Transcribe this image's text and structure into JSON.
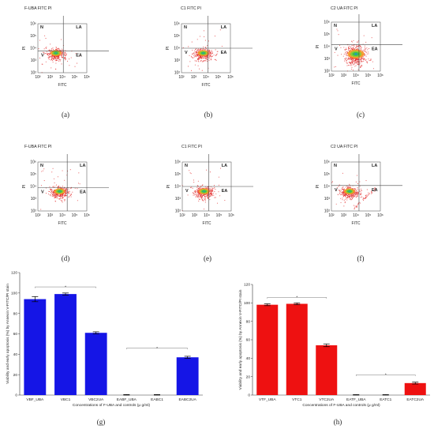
{
  "flow_panels": [
    {
      "id": "a",
      "title": "F-UBA FITC PI",
      "caption": "(a)",
      "quadrants": [
        "N",
        "LA",
        "V",
        "EA"
      ],
      "x_ticks": [
        "10²",
        "10³",
        "10⁴",
        "10⁵",
        "10⁶"
      ],
      "y_ticks": [
        "10²",
        "10³",
        "10⁴",
        "10⁵",
        "10⁶"
      ],
      "xlabel": "FITC",
      "ylabel": "PI"
    },
    {
      "id": "b",
      "title": "C1 FITC PI",
      "caption": "(b)",
      "quadrants": [
        "N",
        "LA",
        "V",
        "EA"
      ],
      "x_ticks": [
        "10²",
        "10³",
        "10⁴",
        "10⁵",
        "10⁶"
      ],
      "y_ticks": [
        "10²",
        "10³",
        "10⁴",
        "10⁵",
        "10⁶"
      ],
      "xlabel": "FITC",
      "ylabel": "PI"
    },
    {
      "id": "c",
      "title": "C2 UA FITC PI",
      "caption": "(c)",
      "quadrants": [
        "N",
        "LA",
        "V",
        "EA"
      ],
      "x_ticks": [
        "10²",
        "10³",
        "10⁴",
        "10⁵",
        "10⁶"
      ],
      "y_ticks": [
        "10²",
        "10³",
        "10⁴",
        "10⁵",
        "10⁶"
      ],
      "xlabel": "FITC",
      "ylabel": "PI"
    },
    {
      "id": "d",
      "title": "F-UBA FITC PI",
      "caption": "(d)",
      "quadrants": [
        "N",
        "LA",
        "V",
        "EA"
      ],
      "x_ticks": [
        "10²",
        "10³",
        "10⁴",
        "10⁵",
        "10⁶"
      ],
      "y_ticks": [
        "10²",
        "10³",
        "10⁴",
        "10⁵",
        "10⁶"
      ],
      "xlabel": "FITC",
      "ylabel": "PI"
    },
    {
      "id": "e",
      "title": "C1 FITC PI",
      "caption": "(e)",
      "quadrants": [
        "N",
        "LA",
        "V",
        "EA"
      ],
      "x_ticks": [
        "10²",
        "10³",
        "10⁴",
        "10⁵",
        "10⁶"
      ],
      "y_ticks": [
        "10²",
        "10³",
        "10⁴",
        "10⁵",
        "10⁶"
      ],
      "xlabel": "FITC",
      "ylabel": "PI"
    },
    {
      "id": "f",
      "title": "C2 UA FITC PI",
      "caption": "(f)",
      "quadrants": [
        "N",
        "LA",
        "V",
        "EA"
      ],
      "x_ticks": [
        "10²",
        "10³",
        "10⁴",
        "10⁵",
        "10⁶"
      ],
      "y_ticks": [
        "10²",
        "10³",
        "10⁴",
        "10⁵",
        "10⁶"
      ],
      "xlabel": "FITC",
      "ylabel": "PI"
    }
  ],
  "bar_panels": [
    {
      "id": "g",
      "caption": "(g)",
      "color": "#1515e6"
    },
    {
      "id": "h",
      "caption": "(h)",
      "color": "#ee1111"
    }
  ],
  "chart_data": [
    {
      "type": "scatter",
      "panel": "a",
      "title": "F-UBA FITC PI",
      "xlabel": "FITC",
      "ylabel": "PI",
      "xscale": "log",
      "yscale": "log",
      "xlim": [
        100,
        1000000
      ],
      "ylim": [
        100,
        1000000
      ],
      "quadrant_gate": {
        "x": 12000,
        "y": 6000
      },
      "quadrant_labels": [
        "N",
        "LA",
        "V",
        "EA"
      ],
      "population_center": [
        3000,
        4000
      ]
    },
    {
      "type": "scatter",
      "panel": "b",
      "title": "C1 FITC PI",
      "xlabel": "FITC",
      "ylabel": "PI",
      "xscale": "log",
      "yscale": "log",
      "xlim": [
        100,
        1000000
      ],
      "ylim": [
        100,
        1000000
      ],
      "quadrant_gate": {
        "x": 15000,
        "y": 10000
      },
      "quadrant_labels": [
        "N",
        "LA",
        "V",
        "EA"
      ],
      "population_center": [
        6000,
        4000
      ]
    },
    {
      "type": "scatter",
      "panel": "c",
      "title": "C2 UA FITC PI",
      "xlabel": "FITC",
      "ylabel": "PI",
      "xscale": "log",
      "yscale": "log",
      "xlim": [
        100,
        1000000
      ],
      "ylim": [
        100,
        1000000
      ],
      "quadrant_gate": {
        "x": 18000,
        "y": 15000
      },
      "quadrant_labels": [
        "N",
        "LA",
        "V",
        "EA"
      ],
      "population_center": [
        10000,
        2500
      ]
    },
    {
      "type": "scatter",
      "panel": "d",
      "title": "F-UBA FITC PI",
      "xlabel": "FITC",
      "ylabel": "PI",
      "xscale": "log",
      "yscale": "log",
      "xlim": [
        100,
        1000000
      ],
      "ylim": [
        100,
        1000000
      ],
      "quadrant_gate": {
        "x": 25000,
        "y": 8000
      },
      "quadrant_labels": [
        "N",
        "LA",
        "V",
        "EA"
      ],
      "population_center": [
        6000,
        4000
      ]
    },
    {
      "type": "scatter",
      "panel": "e",
      "title": "C1 FITC PI",
      "xlabel": "FITC",
      "ylabel": "PI",
      "xscale": "log",
      "yscale": "log",
      "xlim": [
        100,
        1000000
      ],
      "ylim": [
        100,
        1000000
      ],
      "quadrant_gate": {
        "x": 15000,
        "y": 10000
      },
      "quadrant_labels": [
        "N",
        "LA",
        "V",
        "EA"
      ],
      "population_center": [
        6000,
        4000
      ]
    },
    {
      "type": "scatter",
      "panel": "f",
      "title": "C2 UA FITC PI",
      "xlabel": "FITC",
      "ylabel": "PI",
      "xscale": "log",
      "yscale": "log",
      "xlim": [
        100,
        1000000
      ],
      "ylim": [
        100,
        1000000
      ],
      "quadrant_gate": {
        "x": 18000,
        "y": 12000
      },
      "quadrant_labels": [
        "N",
        "LA",
        "V",
        "EA"
      ],
      "population_center": [
        3000,
        4000
      ]
    },
    {
      "type": "bar",
      "panel": "g",
      "categories": [
        "VBF_UBA",
        "VBC1",
        "VBC2UA",
        "EABF_UBA",
        "EABC1",
        "EABC2UA"
      ],
      "values": [
        94,
        99,
        61,
        0,
        0,
        37
      ],
      "errors": [
        2.5,
        1,
        1,
        0.5,
        0.5,
        1
      ],
      "xlabel": "Concentrations of F-UBA and controls (μ g/ml)",
      "ylabel": "Viability and early apoptosis (%) by Annexin V-FITC/PI stain",
      "ylim": [
        0,
        120
      ],
      "yticks": [
        "0",
        "20",
        "40",
        "60",
        "80",
        "100",
        "120"
      ],
      "brackets": [
        {
          "from": 0,
          "to": 2,
          "label": "*"
        },
        {
          "from": 3,
          "to": 5,
          "label": "*"
        }
      ]
    },
    {
      "type": "bar",
      "panel": "h",
      "categories": [
        "VTF_UBA",
        "VTC1",
        "VTC2UA",
        "EATF_UBA",
        "EATC1",
        "EATC2UA"
      ],
      "values": [
        98,
        99,
        54,
        0,
        0,
        13
      ],
      "errors": [
        1,
        1,
        1.5,
        0.5,
        0.5,
        1
      ],
      "xlabel": "Concentrations of F-UBA and controls (μ g/ml)",
      "ylabel": "Viability and early apoptosis (%) by Annexin V-FITC/PI stain",
      "ylim": [
        0,
        120
      ],
      "yticks": [
        "0",
        "20",
        "40",
        "60",
        "80",
        "100",
        "120"
      ],
      "brackets": [
        {
          "from": 0,
          "to": 2,
          "label": "*"
        },
        {
          "from": 3,
          "to": 5,
          "label": "*"
        }
      ]
    }
  ]
}
